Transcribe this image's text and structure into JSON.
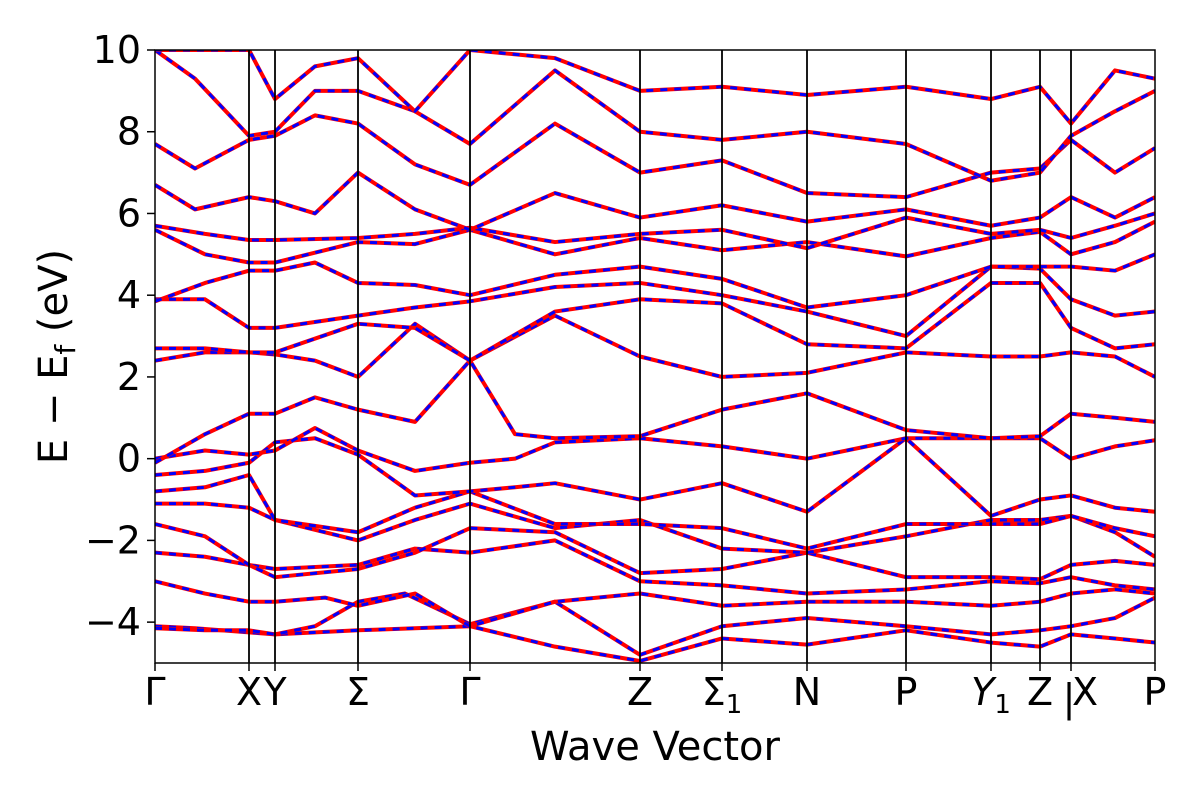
{
  "chart_data": {
    "type": "line",
    "xlabel": "Wave Vector",
    "ylabel": {
      "prefix": "E − E",
      "sub": "f",
      "suffix": " (eV)"
    },
    "ylim": [
      -5,
      10
    ],
    "y_ticks": [
      {
        "value": -4,
        "label": "−4"
      },
      {
        "value": -2,
        "label": "−2"
      },
      {
        "value": 0,
        "label": "0"
      },
      {
        "value": 2,
        "label": "2"
      },
      {
        "value": 4,
        "label": "4"
      },
      {
        "value": 6,
        "label": "6"
      },
      {
        "value": 8,
        "label": "8"
      },
      {
        "value": 10,
        "label": "10"
      }
    ],
    "xlim": [
      0,
      1
    ],
    "k_points": [
      {
        "pos": 0.0,
        "label": "Γ",
        "sub": ""
      },
      {
        "pos": 0.094,
        "label": "X",
        "sub": ""
      },
      {
        "pos": 0.12,
        "label": "Y",
        "sub": ""
      },
      {
        "pos": 0.203,
        "label": "Σ",
        "sub": ""
      },
      {
        "pos": 0.315,
        "label": "Γ",
        "sub": ""
      },
      {
        "pos": 0.485,
        "label": "Z",
        "sub": ""
      },
      {
        "pos": 0.567,
        "label": "Σ",
        "sub": "1"
      },
      {
        "pos": 0.652,
        "label": "N",
        "sub": ""
      },
      {
        "pos": 0.751,
        "label": "P",
        "sub": ""
      },
      {
        "pos": 0.836,
        "label": "Y",
        "sub": "1",
        "italic": true
      },
      {
        "pos": 0.885,
        "label": "Z",
        "sub": ""
      },
      {
        "pos": 0.916,
        "label": "X",
        "sub": "",
        "break_before": true,
        "break_mark": "|"
      },
      {
        "pos": 1.0,
        "label": "P",
        "sub": ""
      }
    ],
    "series_style": {
      "primary_color": "#ff0000",
      "overlay_color": "#0000ff",
      "overlay_dashed": true
    },
    "bands": [
      {
        "x": [
          0.0,
          0.04,
          0.094,
          0.12,
          0.203,
          0.26,
          0.315,
          0.4,
          0.485,
          0.567,
          0.652,
          0.751,
          0.836,
          0.885,
          0.916,
          0.96,
          1.0
        ],
        "y": [
          -4.1,
          -4.15,
          -4.25,
          -4.3,
          -4.2,
          -4.15,
          -4.1,
          -4.6,
          -4.95,
          -4.4,
          -4.55,
          -4.2,
          -4.5,
          -4.6,
          -4.3,
          -4.4,
          -4.5
        ]
      },
      {
        "x": [
          0.0,
          0.05,
          0.094,
          0.12,
          0.16,
          0.203,
          0.25,
          0.315,
          0.4,
          0.485,
          0.567,
          0.652,
          0.751,
          0.836,
          0.885,
          0.916,
          0.96,
          1.0
        ],
        "y": [
          -4.15,
          -4.2,
          -4.2,
          -4.3,
          -4.1,
          -3.5,
          -3.3,
          -4.05,
          -3.5,
          -4.8,
          -4.1,
          -3.9,
          -4.1,
          -4.3,
          -4.2,
          -4.1,
          -3.9,
          -3.4
        ]
      },
      {
        "x": [
          0.0,
          0.05,
          0.094,
          0.12,
          0.17,
          0.203,
          0.26,
          0.315,
          0.4,
          0.485,
          0.567,
          0.652,
          0.751,
          0.836,
          0.885,
          0.916,
          0.96,
          1.0
        ],
        "y": [
          -3.0,
          -3.3,
          -3.5,
          -3.5,
          -3.4,
          -3.6,
          -3.3,
          -4.1,
          -3.5,
          -3.3,
          -3.6,
          -3.5,
          -3.5,
          -3.6,
          -3.5,
          -3.3,
          -3.2,
          -3.3
        ]
      },
      {
        "x": [
          0.0,
          0.05,
          0.094,
          0.12,
          0.203,
          0.26,
          0.315,
          0.4,
          0.485,
          0.567,
          0.652,
          0.751,
          0.836,
          0.885,
          0.916,
          0.96,
          1.0
        ],
        "y": [
          -2.3,
          -2.4,
          -2.6,
          -2.7,
          -2.6,
          -2.2,
          -2.3,
          -2.0,
          -3.0,
          -3.1,
          -3.3,
          -3.2,
          -3.0,
          -3.05,
          -2.9,
          -3.1,
          -3.2
        ]
      },
      {
        "x": [
          0.0,
          0.05,
          0.094,
          0.12,
          0.203,
          0.26,
          0.315,
          0.4,
          0.485,
          0.567,
          0.652,
          0.751,
          0.836,
          0.885,
          0.916,
          0.96,
          1.0
        ],
        "y": [
          -1.6,
          -1.9,
          -2.6,
          -2.9,
          -2.7,
          -2.3,
          -1.7,
          -1.8,
          -2.8,
          -2.7,
          -2.3,
          -2.9,
          -2.9,
          -2.95,
          -2.6,
          -2.5,
          -2.6
        ]
      },
      {
        "x": [
          0.0,
          0.05,
          0.094,
          0.12,
          0.203,
          0.26,
          0.315,
          0.4,
          0.485,
          0.567,
          0.652,
          0.751,
          0.836,
          0.885,
          0.916,
          0.96,
          1.0
        ],
        "y": [
          -1.1,
          -1.1,
          -1.2,
          -1.5,
          -2.0,
          -1.5,
          -1.1,
          -1.7,
          -1.5,
          -2.2,
          -2.3,
          -1.9,
          -1.5,
          -1.5,
          -1.4,
          -1.8,
          -2.4
        ]
      },
      {
        "x": [
          0.0,
          0.05,
          0.094,
          0.12,
          0.203,
          0.26,
          0.315,
          0.4,
          0.485,
          0.567,
          0.652,
          0.751,
          0.836,
          0.885,
          0.916,
          0.96,
          1.0
        ],
        "y": [
          -0.8,
          -0.7,
          -0.4,
          -1.5,
          -1.8,
          -1.2,
          -0.8,
          -1.6,
          -1.6,
          -1.7,
          -2.2,
          -1.6,
          -1.6,
          -1.6,
          -1.4,
          -1.7,
          -1.9
        ]
      },
      {
        "x": [
          0.0,
          0.05,
          0.094,
          0.12,
          0.16,
          0.203,
          0.26,
          0.315,
          0.36,
          0.4,
          0.485,
          0.567,
          0.652,
          0.751,
          0.836,
          0.885,
          0.916,
          0.96,
          1.0
        ],
        "y": [
          -0.4,
          -0.3,
          -0.1,
          0.4,
          0.5,
          0.1,
          -0.9,
          -0.8,
          -0.7,
          -0.6,
          -1.0,
          -0.6,
          -1.3,
          0.5,
          -1.4,
          -1.0,
          -0.9,
          -1.2,
          -1.3
        ]
      },
      {
        "x": [
          0.0,
          0.05,
          0.094,
          0.12,
          0.16,
          0.203,
          0.26,
          0.315,
          0.36,
          0.4,
          0.485,
          0.567,
          0.652,
          0.751,
          0.836,
          0.885,
          0.916,
          0.96,
          1.0
        ],
        "y": [
          0.0,
          0.2,
          0.1,
          0.2,
          0.75,
          0.2,
          -0.3,
          -0.1,
          0.0,
          0.4,
          0.5,
          0.3,
          0.0,
          0.5,
          0.5,
          0.5,
          0.0,
          0.3,
          0.45
        ]
      },
      {
        "x": [
          0.0,
          0.05,
          0.094,
          0.12,
          0.16,
          0.203,
          0.26,
          0.315,
          0.36,
          0.4,
          0.485,
          0.567,
          0.652,
          0.751,
          0.836,
          0.885,
          0.916,
          0.96,
          1.0
        ],
        "y": [
          -0.1,
          0.6,
          1.1,
          1.1,
          1.5,
          1.2,
          0.9,
          2.4,
          0.6,
          0.5,
          0.55,
          1.2,
          1.6,
          0.7,
          0.5,
          0.55,
          1.1,
          1.0,
          0.9
        ]
      },
      {
        "x": [
          0.0,
          0.05,
          0.094,
          0.12,
          0.16,
          0.203,
          0.26,
          0.315,
          0.4,
          0.485,
          0.567,
          0.652,
          0.751,
          0.836,
          0.885,
          0.916,
          0.96,
          1.0
        ],
        "y": [
          2.4,
          2.6,
          2.6,
          2.55,
          2.4,
          2.0,
          3.3,
          2.4,
          3.5,
          2.5,
          2.0,
          2.1,
          2.6,
          2.5,
          2.5,
          2.6,
          2.5,
          2.0
        ]
      },
      {
        "x": [
          0.0,
          0.05,
          0.094,
          0.12,
          0.203,
          0.26,
          0.315,
          0.4,
          0.485,
          0.567,
          0.652,
          0.751,
          0.836,
          0.885,
          0.916,
          0.96,
          1.0
        ],
        "y": [
          2.7,
          2.7,
          2.6,
          2.6,
          3.3,
          3.2,
          2.4,
          3.6,
          3.9,
          3.8,
          2.8,
          2.7,
          4.3,
          4.3,
          3.2,
          2.7,
          2.8
        ]
      },
      {
        "x": [
          0.0,
          0.05,
          0.094,
          0.12,
          0.203,
          0.26,
          0.315,
          0.4,
          0.485,
          0.567,
          0.652,
          0.751,
          0.836,
          0.885,
          0.916,
          0.96,
          1.0
        ],
        "y": [
          3.9,
          3.9,
          3.2,
          3.2,
          3.5,
          3.7,
          3.85,
          4.2,
          4.3,
          4.0,
          3.6,
          3.0,
          4.7,
          4.65,
          3.9,
          3.5,
          3.6
        ]
      },
      {
        "x": [
          0.0,
          0.05,
          0.094,
          0.12,
          0.16,
          0.203,
          0.26,
          0.315,
          0.4,
          0.485,
          0.567,
          0.652,
          0.751,
          0.836,
          0.885,
          0.916,
          0.96,
          1.0
        ],
        "y": [
          3.85,
          4.3,
          4.6,
          4.6,
          4.8,
          4.3,
          4.25,
          4.0,
          4.5,
          4.7,
          4.4,
          3.7,
          4.0,
          4.7,
          4.7,
          4.7,
          4.6,
          5.0
        ]
      },
      {
        "x": [
          0.0,
          0.05,
          0.094,
          0.12,
          0.203,
          0.26,
          0.315,
          0.4,
          0.485,
          0.567,
          0.652,
          0.751,
          0.836,
          0.885,
          0.916,
          0.96,
          1.0
        ],
        "y": [
          5.6,
          5.0,
          4.8,
          4.8,
          5.3,
          5.25,
          5.6,
          5.0,
          5.4,
          5.1,
          5.3,
          4.95,
          5.4,
          5.55,
          5.0,
          5.3,
          5.8
        ]
      },
      {
        "x": [
          0.0,
          0.05,
          0.094,
          0.12,
          0.203,
          0.26,
          0.315,
          0.4,
          0.485,
          0.567,
          0.652,
          0.751,
          0.836,
          0.885,
          0.916,
          0.96,
          1.0
        ],
        "y": [
          5.7,
          5.5,
          5.35,
          5.35,
          5.4,
          5.5,
          5.65,
          5.3,
          5.5,
          5.6,
          5.15,
          5.9,
          5.5,
          5.6,
          5.4,
          5.7,
          6.0
        ]
      },
      {
        "x": [
          0.0,
          0.04,
          0.094,
          0.12,
          0.16,
          0.203,
          0.26,
          0.315,
          0.4,
          0.485,
          0.567,
          0.652,
          0.751,
          0.836,
          0.885,
          0.916,
          0.96,
          1.0
        ],
        "y": [
          6.7,
          6.1,
          6.4,
          6.3,
          6.0,
          7.0,
          6.1,
          5.6,
          6.5,
          5.9,
          6.2,
          5.8,
          6.1,
          5.7,
          5.9,
          6.4,
          5.9,
          6.4
        ]
      },
      {
        "x": [
          0.0,
          0.04,
          0.094,
          0.12,
          0.16,
          0.203,
          0.26,
          0.315,
          0.4,
          0.485,
          0.567,
          0.652,
          0.751,
          0.836,
          0.885,
          0.916,
          0.96,
          1.0
        ],
        "y": [
          7.7,
          7.1,
          7.8,
          7.9,
          8.4,
          8.2,
          7.2,
          6.7,
          8.2,
          7.0,
          7.3,
          6.5,
          6.4,
          7.0,
          7.1,
          7.8,
          7.0,
          7.6
        ]
      },
      {
        "x": [
          0.0,
          0.04,
          0.094,
          0.12,
          0.16,
          0.203,
          0.26,
          0.315,
          0.4,
          0.485,
          0.567,
          0.652,
          0.751,
          0.836,
          0.885,
          0.916,
          0.96,
          1.0
        ],
        "y": [
          10.0,
          9.3,
          7.9,
          8.0,
          9.0,
          9.0,
          8.5,
          7.7,
          9.5,
          8.0,
          7.8,
          8.0,
          7.7,
          6.8,
          7.0,
          7.9,
          8.5,
          9.0
        ]
      },
      {
        "x": [
          0.0,
          0.094,
          0.12,
          0.16,
          0.203,
          0.26,
          0.315,
          0.4,
          0.485,
          0.567,
          0.652,
          0.751,
          0.836,
          0.885,
          0.916,
          0.96,
          1.0
        ],
        "y": [
          10.0,
          10.0,
          8.8,
          9.6,
          9.8,
          8.5,
          10.0,
          9.8,
          9.0,
          9.1,
          8.9,
          9.1,
          8.8,
          9.1,
          8.2,
          9.5,
          9.3
        ]
      }
    ]
  }
}
